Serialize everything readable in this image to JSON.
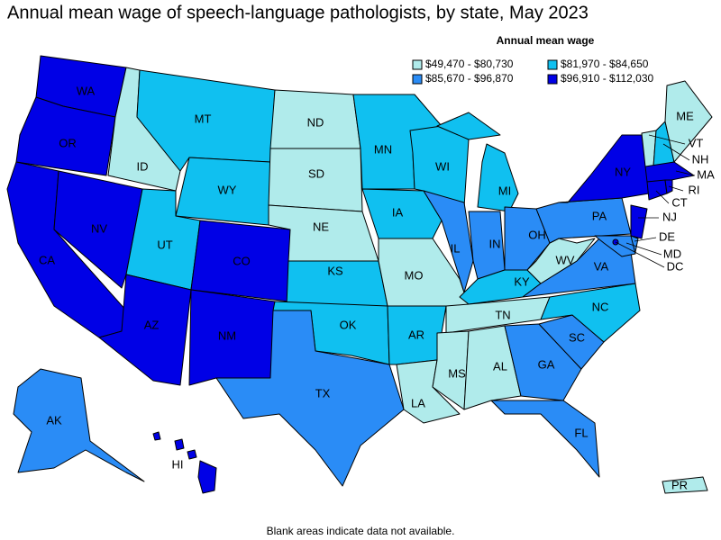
{
  "header": {
    "title": "Annual mean wage of speech-language pathologists, by state, May 2023"
  },
  "legend": {
    "title": "Annual mean wage",
    "items": [
      {
        "label": "$49,470 - $80,730",
        "color": "#b0ebeb"
      },
      {
        "label": "$81,970 - $84,650",
        "color": "#10c0f0"
      },
      {
        "label": "$85,670 - $96,870",
        "color": "#2a8cf6"
      },
      {
        "label": "$96,910 - $112,030",
        "color": "#0000e6"
      }
    ]
  },
  "states": [
    {
      "abbr": "WA",
      "class": 3
    },
    {
      "abbr": "OR",
      "class": 3
    },
    {
      "abbr": "CA",
      "class": 3
    },
    {
      "abbr": "NV",
      "class": 3
    },
    {
      "abbr": "ID",
      "class": 0
    },
    {
      "abbr": "MT",
      "class": 1
    },
    {
      "abbr": "WY",
      "class": 1
    },
    {
      "abbr": "UT",
      "class": 1
    },
    {
      "abbr": "AZ",
      "class": 3
    },
    {
      "abbr": "CO",
      "class": 3
    },
    {
      "abbr": "NM",
      "class": 3
    },
    {
      "abbr": "ND",
      "class": 0
    },
    {
      "abbr": "SD",
      "class": 0
    },
    {
      "abbr": "NE",
      "class": 0
    },
    {
      "abbr": "KS",
      "class": 1
    },
    {
      "abbr": "OK",
      "class": 1
    },
    {
      "abbr": "TX",
      "class": 2
    },
    {
      "abbr": "MN",
      "class": 1
    },
    {
      "abbr": "IA",
      "class": 1
    },
    {
      "abbr": "MO",
      "class": 0
    },
    {
      "abbr": "AR",
      "class": 1
    },
    {
      "abbr": "LA",
      "class": 0
    },
    {
      "abbr": "WI",
      "class": 1
    },
    {
      "abbr": "IL",
      "class": 2
    },
    {
      "abbr": "MI",
      "class": 1
    },
    {
      "abbr": "IN",
      "class": 2
    },
    {
      "abbr": "OH",
      "class": 2
    },
    {
      "abbr": "KY",
      "class": 1
    },
    {
      "abbr": "TN",
      "class": 0
    },
    {
      "abbr": "MS",
      "class": 0
    },
    {
      "abbr": "AL",
      "class": 0
    },
    {
      "abbr": "GA",
      "class": 2
    },
    {
      "abbr": "FL",
      "class": 2
    },
    {
      "abbr": "SC",
      "class": 2
    },
    {
      "abbr": "NC",
      "class": 1
    },
    {
      "abbr": "VA",
      "class": 2
    },
    {
      "abbr": "WV",
      "class": 0
    },
    {
      "abbr": "PA",
      "class": 2
    },
    {
      "abbr": "NY",
      "class": 3
    },
    {
      "abbr": "NJ",
      "class": 3
    },
    {
      "abbr": "DE",
      "class": 2
    },
    {
      "abbr": "MD",
      "class": 2
    },
    {
      "abbr": "DC",
      "class": 3
    },
    {
      "abbr": "VT",
      "class": 0
    },
    {
      "abbr": "NH",
      "class": 1
    },
    {
      "abbr": "ME",
      "class": 0
    },
    {
      "abbr": "MA",
      "class": 3
    },
    {
      "abbr": "CT",
      "class": 3
    },
    {
      "abbr": "RI",
      "class": 3
    },
    {
      "abbr": "AK",
      "class": 2
    },
    {
      "abbr": "HI",
      "class": 3
    },
    {
      "abbr": "PR",
      "class": 0
    }
  ],
  "footnote": "Blank areas indicate data not available."
}
